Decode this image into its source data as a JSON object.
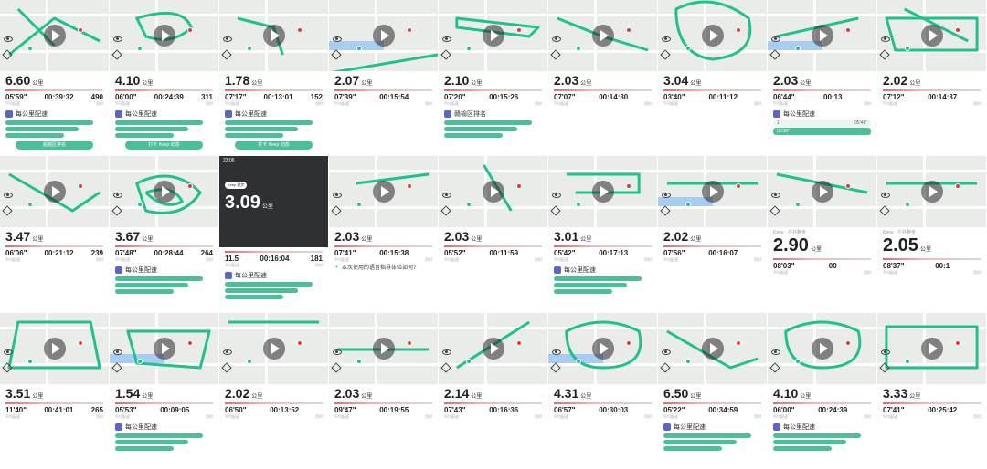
{
  "colors": {
    "accent": "#4bbf99",
    "route": "#1ec28b",
    "pin": "#e03a3a",
    "purple": "#5b64c9"
  },
  "units": {
    "km": "公里",
    "pace_label": "平均配速",
    "time_label": "用时",
    "per_km": "每公里配速"
  },
  "row1": [
    {
      "dist": "6.60",
      "pace": "05'59\"",
      "time": "00:39:32",
      "kcal": "490",
      "extra1": "每公里配速",
      "extra2": "超越区排名"
    },
    {
      "dist": "4.10",
      "pace": "06'00\"",
      "time": "00:24:39",
      "kcal": "311",
      "extra1": "每公里配速",
      "extra2": "打卡 Keep 动态"
    },
    {
      "dist": "1.78",
      "pace": "07'17\"",
      "time": "00:13:01",
      "kcal": "152",
      "extra1": "每公里配速",
      "extra2": "打卡 Keep 动态"
    },
    {
      "dist": "2.07",
      "pace": "07'39\"",
      "time": "00:15:54",
      "kcal": "",
      "extra1": "",
      "extra2": ""
    },
    {
      "dist": "2.10",
      "pace": "07'20\"",
      "time": "00:15:26",
      "kcal": "",
      "extra1": "赣榆区排名",
      "extra2": ""
    },
    {
      "dist": "2.03",
      "pace": "07'07\"",
      "time": "00:14:30",
      "kcal": "",
      "extra1": "",
      "extra2": ""
    },
    {
      "dist": "3.04",
      "pace": "03'40\"",
      "time": "00:11:12",
      "kcal": "",
      "extra1": "",
      "extra2": ""
    },
    {
      "dist": "2.03",
      "pace": "06'44\"",
      "time": "00:13",
      "kcal": "",
      "extra1": "每公里配速",
      "extra2": "",
      "pace1": "05'48\"",
      "pace2": "05'39\""
    },
    {
      "dist": "2.02",
      "pace": "07'12\"",
      "time": "00:14:37",
      "kcal": "",
      "extra1": "",
      "extra2": ""
    }
  ],
  "row2": [
    {
      "dist": "3.47",
      "pace": "06'06\"",
      "time": "00:21:12",
      "kcal": "239",
      "extra1": "",
      "extra2": ""
    },
    {
      "dist": "3.67",
      "pace": "07'48\"",
      "time": "00:28:44",
      "kcal": "264",
      "extra1": "每公里配速",
      "extra2": ""
    },
    {
      "dist": "3.09",
      "pace": "11.5",
      "time": "00:16:04",
      "kcal": "181",
      "extra1": "每公里配速",
      "extra2": "",
      "clock": "23:06",
      "badge": "Keep 跑步"
    },
    {
      "dist": "2.03",
      "pace": "07'41\"",
      "time": "00:15:38",
      "kcal": "",
      "extra1": "本次使用的语音指导体验如何?",
      "extra2": ""
    },
    {
      "dist": "2.03",
      "pace": "05'52\"",
      "time": "00:11:59",
      "kcal": "",
      "extra1": "",
      "extra2": ""
    },
    {
      "dist": "3.01",
      "pace": "05'42\"",
      "time": "00:17:13",
      "kcal": "",
      "extra1": "每公里配速",
      "extra2": ""
    },
    {
      "dist": "2.02",
      "pace": "07'56\"",
      "time": "00:16:07",
      "kcal": "",
      "extra1": "",
      "extra2": ""
    },
    {
      "dist": "2.90",
      "pace": "08'03\"",
      "time": "00",
      "kcal": "",
      "extra1": "",
      "extra2": "",
      "header": "Keep · 户外跑步"
    },
    {
      "dist": "2.05",
      "pace": "08'37\"",
      "time": "00:1",
      "kcal": "",
      "extra1": "",
      "extra2": "",
      "header": "Keep · 户外跑步"
    }
  ],
  "row3": [
    {
      "dist": "3.51",
      "pace": "11'40\"",
      "time": "00:41:01",
      "kcal": "265",
      "extra1": "",
      "extra2": ""
    },
    {
      "dist": "1.54",
      "pace": "05'53\"",
      "time": "00:09:05",
      "kcal": "",
      "extra1": "每公里配速",
      "extra2": ""
    },
    {
      "dist": "2.02",
      "pace": "06'50\"",
      "time": "00:13:52",
      "kcal": "",
      "extra1": "",
      "extra2": ""
    },
    {
      "dist": "2.03",
      "pace": "09'47\"",
      "time": "00:19:55",
      "kcal": "",
      "extra1": "",
      "extra2": ""
    },
    {
      "dist": "2.14",
      "pace": "07'43\"",
      "time": "00:16:36",
      "kcal": "",
      "extra1": "",
      "extra2": ""
    },
    {
      "dist": "4.31",
      "pace": "06'57\"",
      "time": "00:30:03",
      "kcal": "",
      "extra1": "",
      "extra2": ""
    },
    {
      "dist": "6.50",
      "pace": "05'22\"",
      "time": "00:34:59",
      "kcal": "",
      "extra1": "每公里配速",
      "extra2": ""
    },
    {
      "dist": "4.10",
      "pace": "06'00\"",
      "time": "00:24:39",
      "kcal": "",
      "extra1": "每公里配速",
      "extra2": ""
    },
    {
      "dist": "3.33",
      "pace": "07'41\"",
      "time": "00:25:42",
      "kcal": "",
      "extra1": "",
      "extra2": ""
    }
  ]
}
